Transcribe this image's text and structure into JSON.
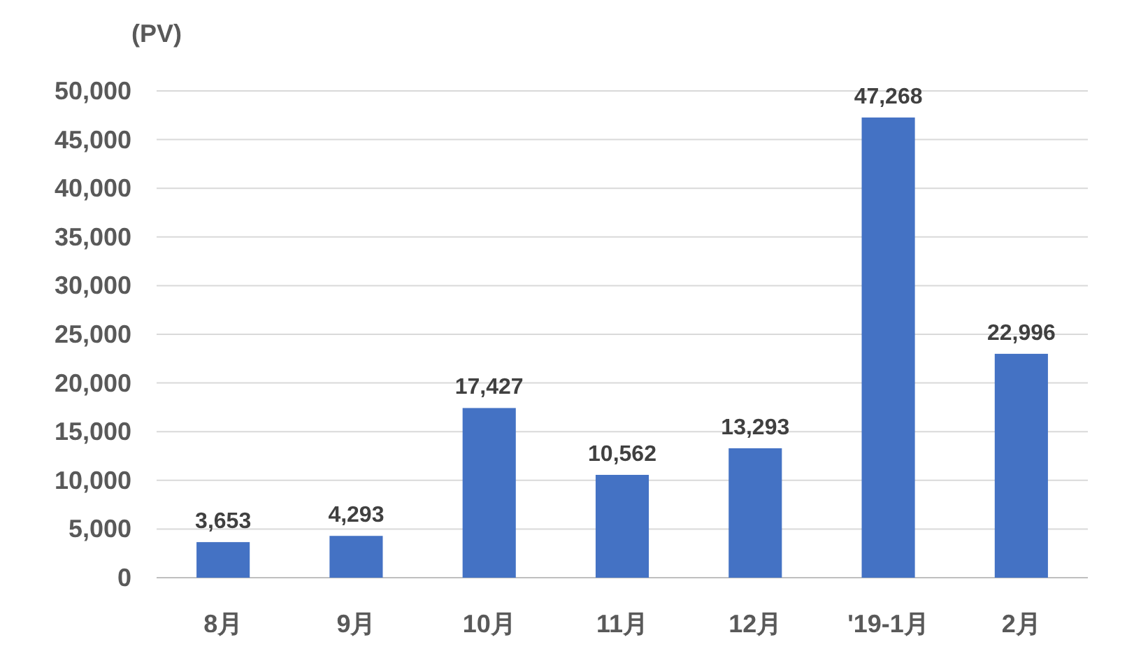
{
  "chart_data": {
    "type": "bar",
    "ylabel": "(PV)",
    "categories": [
      "8月",
      "9月",
      "10月",
      "11月",
      "12月",
      "'19-1月",
      "2月"
    ],
    "values": [
      3653,
      4293,
      17427,
      10562,
      13293,
      47268,
      22996
    ],
    "value_labels": [
      "3,653",
      "4,293",
      "17,427",
      "10,562",
      "13,293",
      "47,268",
      "22,996"
    ],
    "color": "#4472c4",
    "ylim": [
      0,
      50000
    ],
    "yticks": [
      {
        "value": 0,
        "label": "0"
      },
      {
        "value": 5000,
        "label": "5,000"
      },
      {
        "value": 10000,
        "label": "10,000"
      },
      {
        "value": 15000,
        "label": "15,000"
      },
      {
        "value": 20000,
        "label": "20,000"
      },
      {
        "value": 25000,
        "label": "25,000"
      },
      {
        "value": 30000,
        "label": "30,000"
      },
      {
        "value": 35000,
        "label": "35,000"
      },
      {
        "value": 40000,
        "label": "40,000"
      },
      {
        "value": 45000,
        "label": "45,000"
      },
      {
        "value": 50000,
        "label": "50,000"
      }
    ],
    "grid": "y"
  }
}
